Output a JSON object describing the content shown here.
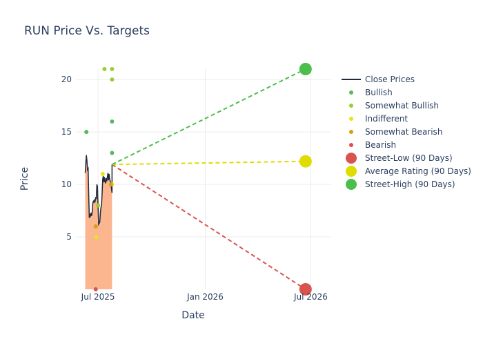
{
  "chart_data": {
    "type": "line",
    "title": "RUN Price Vs. Targets",
    "xlabel": "Date",
    "ylabel": "Price",
    "x_tick_labels": [
      "Jul 2025",
      "Jan 2026",
      "Jul 2026"
    ],
    "x_ticks_day": [
      0,
      184,
      365
    ],
    "x_range_day": [
      -38,
      400
    ],
    "y_ticks": [
      5,
      10,
      15,
      20
    ],
    "ylim": [
      0,
      21
    ],
    "close_prices": {
      "name": "Close Prices",
      "color": "#1f2a3a",
      "fill": "#fbb58f",
      "points": [
        [
          -22,
          11.1
        ],
        [
          -21,
          12.0
        ],
        [
          -20,
          12.8
        ],
        [
          -19,
          12.2
        ],
        [
          -18,
          11.4
        ],
        [
          -17,
          11.5
        ],
        [
          -16,
          9.0
        ],
        [
          -15,
          6.8
        ],
        [
          -14,
          7.1
        ],
        [
          -13,
          7.0
        ],
        [
          -12,
          7.3
        ],
        [
          -11,
          7.0
        ],
        [
          -10,
          7.4
        ],
        [
          -9,
          8.2
        ],
        [
          -8,
          8.4
        ],
        [
          -7,
          8.3
        ],
        [
          -6,
          8.5
        ],
        [
          -5,
          8.4
        ],
        [
          -4,
          8.8
        ],
        [
          -3,
          8.6
        ],
        [
          -2,
          10.0
        ],
        [
          -1,
          9.8
        ],
        [
          0,
          8.0
        ],
        [
          1,
          6.2
        ],
        [
          2,
          6.3
        ],
        [
          3,
          6.4
        ],
        [
          4,
          7.3
        ],
        [
          5,
          7.8
        ],
        [
          6,
          8.0
        ],
        [
          7,
          9.2
        ],
        [
          8,
          10.5
        ],
        [
          9,
          10.8
        ],
        [
          10,
          10.2
        ],
        [
          11,
          10.7
        ],
        [
          12,
          10.3
        ],
        [
          13,
          10.1
        ],
        [
          14,
          10.6
        ],
        [
          15,
          10.3
        ],
        [
          16,
          10.7
        ],
        [
          17,
          11.1
        ],
        [
          18,
          10.4
        ],
        [
          19,
          11.0
        ],
        [
          20,
          10.5
        ],
        [
          21,
          10.3
        ],
        [
          22,
          10.1
        ],
        [
          23,
          9.6
        ],
        [
          24,
          9.2
        ],
        [
          24,
          11.9
        ]
      ]
    },
    "ratings": [
      {
        "name": "Bullish",
        "color": "#5cb85c",
        "points": [
          [
            -20,
            15
          ],
          [
            24,
            16
          ],
          [
            24,
            13
          ]
        ]
      },
      {
        "name": "Somewhat Bullish",
        "color": "#9acd32",
        "points": [
          [
            0,
            8
          ],
          [
            11,
            21
          ],
          [
            24,
            21
          ],
          [
            24,
            20
          ]
        ]
      },
      {
        "name": "Indifferent",
        "color": "#e8e31a",
        "points": [
          [
            -3,
            5
          ],
          [
            8,
            11
          ],
          [
            24,
            10
          ]
        ]
      },
      {
        "name": "Somewhat Bearish",
        "color": "#d4a017",
        "points": [
          [
            -4,
            6
          ],
          [
            22,
            10
          ]
        ]
      },
      {
        "name": "Bearish",
        "color": "#d9534f",
        "points": [
          [
            -4,
            0
          ]
        ]
      }
    ],
    "targets": [
      {
        "name": "Street-Low (90 Days)",
        "color": "#d9534f",
        "start": [
          24,
          11.9
        ],
        "end": [
          356,
          0
        ]
      },
      {
        "name": "Average Rating (90 Days)",
        "color": "#e0dc00",
        "start": [
          24,
          11.9
        ],
        "end": [
          356,
          12.2
        ]
      },
      {
        "name": "Street-High (90 Days)",
        "color": "#4cbe4c",
        "start": [
          24,
          11.9
        ],
        "end": [
          356,
          21
        ]
      }
    ],
    "legend": {
      "position": "right",
      "items": [
        {
          "label": "Close Prices",
          "kind": "line",
          "color": "#1f2a3a"
        },
        {
          "label": "Bullish",
          "kind": "dot",
          "color": "#5cb85c"
        },
        {
          "label": "Somewhat Bullish",
          "kind": "dot",
          "color": "#9acd32"
        },
        {
          "label": "Indifferent",
          "kind": "dot",
          "color": "#e8e31a"
        },
        {
          "label": "Somewhat Bearish",
          "kind": "dot",
          "color": "#d4a017"
        },
        {
          "label": "Bearish",
          "kind": "dot",
          "color": "#d9534f"
        },
        {
          "label": "Street-Low (90 Days)",
          "kind": "bigdot",
          "color": "#d9534f"
        },
        {
          "label": "Average Rating (90 Days)",
          "kind": "bigdot",
          "color": "#e0dc00"
        },
        {
          "label": "Street-High (90 Days)",
          "kind": "bigdot",
          "color": "#4cbe4c"
        }
      ]
    }
  }
}
